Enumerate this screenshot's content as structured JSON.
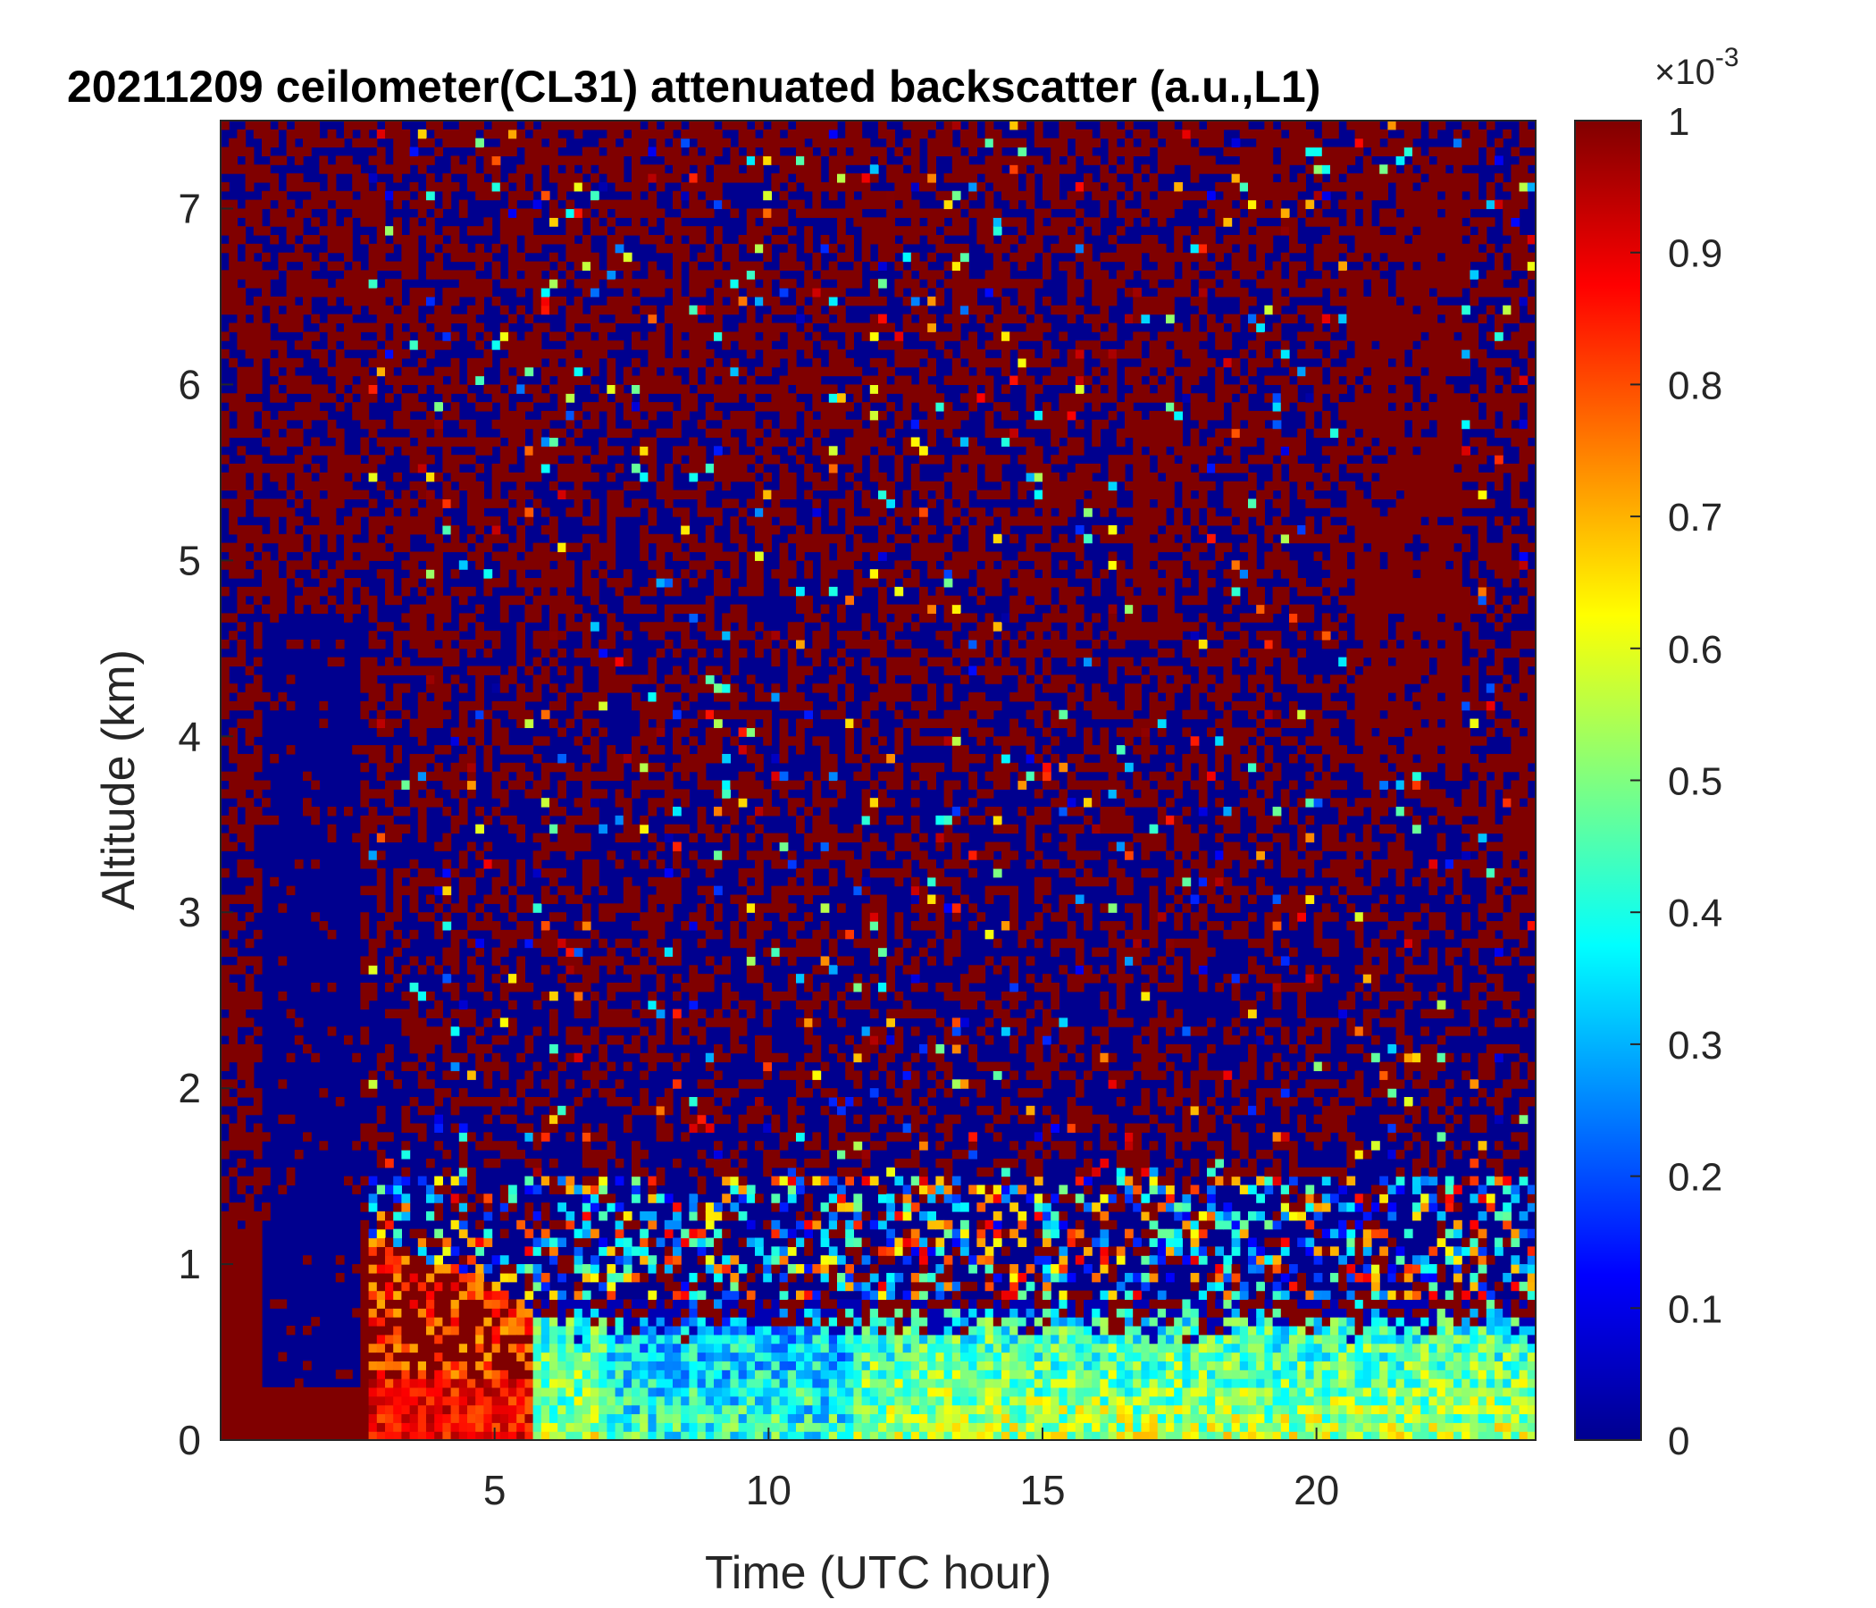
{
  "chart_data": {
    "type": "heatmap",
    "title": "20211209 ceilometer(CL31) attenuated backscatter (a.u.,L1)",
    "xlabel": "Time (UTC hour)",
    "ylabel": "Altitude (km)",
    "xlim": [
      0,
      24
    ],
    "ylim": [
      0,
      7.5
    ],
    "x_ticks": [
      "5",
      "10",
      "15",
      "20"
    ],
    "y_ticks": [
      "0",
      "1",
      "2",
      "3",
      "4",
      "5",
      "6",
      "7"
    ],
    "colorbar": {
      "colormap": "jet",
      "range": [
        0,
        0.001
      ],
      "exponent_label": "×10",
      "exponent": "-3",
      "ticks": [
        "0",
        "0.1",
        "0.2",
        "0.3",
        "0.4",
        "0.5",
        "0.6",
        "0.7",
        "0.8",
        "0.9",
        "1"
      ]
    },
    "features": [
      {
        "kind": "noise_background",
        "x": [
          0,
          24
        ],
        "y": [
          1.5,
          7.5
        ],
        "value_fraction": "mixed 0 and 1"
      },
      {
        "kind": "saturated_high_values",
        "x": [
          0,
          2.7
        ],
        "y": [
          0,
          7.5
        ],
        "value_fraction": 1.0
      },
      {
        "kind": "low_signal_column",
        "x": [
          0.8,
          2.6
        ],
        "y": [
          0.3,
          4.7
        ],
        "value_fraction": 0.0
      },
      {
        "kind": "boundary_layer_strong",
        "x": [
          2.6,
          5.7
        ],
        "y": [
          0,
          1.2
        ],
        "value_fraction": 0.9
      },
      {
        "kind": "boundary_layer_moderate",
        "x": [
          5,
          24
        ],
        "y": [
          0,
          0.8
        ],
        "value_fraction": 0.4
      },
      {
        "kind": "high_value_streak",
        "x": [
          16.6,
          17.4
        ],
        "y": [
          4.5,
          5.8
        ],
        "value_fraction": 1.0
      },
      {
        "kind": "high_value_streak",
        "x": [
          20.7,
          22.6
        ],
        "y": [
          3.8,
          7.2
        ],
        "value_fraction": 1.0
      },
      {
        "kind": "high_value_streak",
        "x": [
          23.6,
          24
        ],
        "y": [
          3,
          4.6
        ],
        "value_fraction": 1.0
      }
    ],
    "grid": false,
    "legend": "colorbar-right"
  }
}
